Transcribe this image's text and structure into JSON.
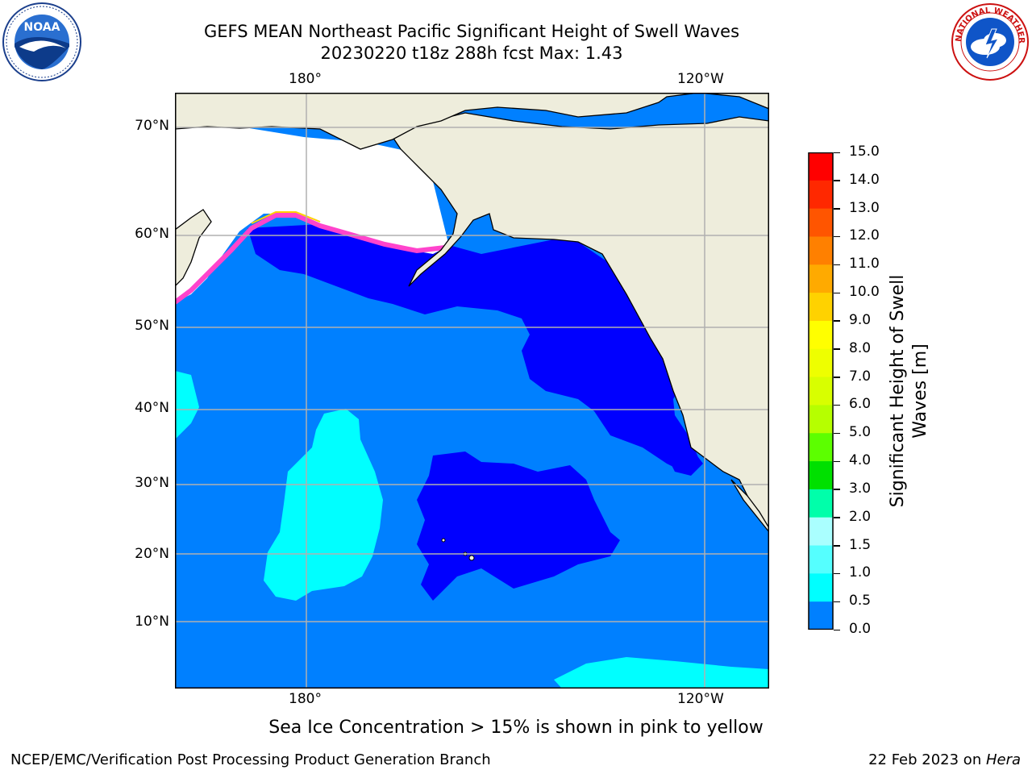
{
  "header": {
    "title_line1": "GEFS MEAN Northeast Pacific Significant Height of Swell Waves",
    "title_line2": "20230220 t18z 288h fcst   Max: 1.43"
  },
  "logos": {
    "left": "NOAA",
    "right": "NATIONAL WEATHER SERVICE"
  },
  "map": {
    "lon_labels_top": [
      "180°",
      "120°W"
    ],
    "lon_labels_bottom": [
      "180°",
      "120°W"
    ],
    "lat_labels": [
      "70°N",
      "60°N",
      "50°N",
      "40°N",
      "30°N",
      "20°N",
      "10°N"
    ],
    "colors": {
      "ocean_0_5": "#0000ff",
      "ocean_0_5_1_0": "#0080ff",
      "ocean_1_0_1_5": "#00ffff",
      "land": "#eeeddc",
      "ice": "#ffffff",
      "ice_edge": "#ff44cc",
      "grid": "#b0b0b0"
    }
  },
  "colorbar": {
    "title_line1": "Significant Height of Swell",
    "title_line2": "Waves [m]",
    "ticks": [
      "15.0",
      "14.0",
      "13.0",
      "12.0",
      "11.0",
      "10.0",
      "9.0",
      "8.0",
      "7.0",
      "6.0",
      "5.0",
      "4.0",
      "3.0",
      "2.0",
      "1.5",
      "1.0",
      "0.5",
      "0.0"
    ],
    "colors": [
      "#ff0000",
      "#ff2800",
      "#ff5500",
      "#ff8000",
      "#ffaa00",
      "#ffd200",
      "#ffff00",
      "#eeff00",
      "#d8ff00",
      "#b6ff00",
      "#5cff00",
      "#00e000",
      "#00ffaa",
      "#aaffff",
      "#55ffff",
      "#00ffff",
      "#0080ff",
      "#0000ff"
    ]
  },
  "caption": "Sea Ice Concentration > 15% is shown in pink to yellow",
  "footer": {
    "left": "NCEP/EMC/Verification Post Processing Product Generation Branch",
    "right_prefix": "22 Feb 2023 on ",
    "right_host": "Hera"
  }
}
